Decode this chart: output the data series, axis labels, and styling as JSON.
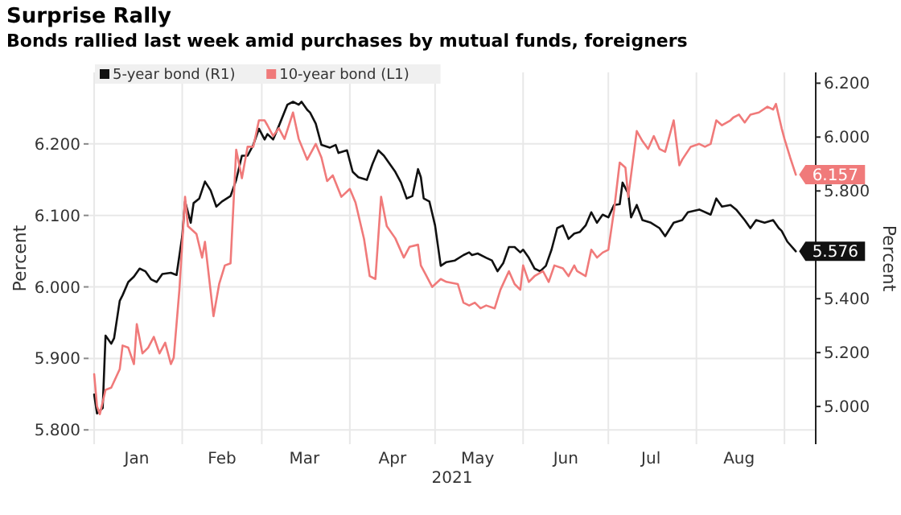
{
  "chart_data": {
    "type": "line",
    "title": "Surprise Rally",
    "subtitle": "Bonds rallied last week amid purchases by mutual funds, foreigners",
    "xlabel": "2021",
    "ylabel": "Percent",
    "y2label": "Percent",
    "xlim": [
      "2020-12-30",
      "2021-09-12"
    ],
    "xticks": [
      {
        "value": "2021-01-01",
        "label": null
      },
      {
        "value": "2021-01-16",
        "label": "Jan"
      },
      {
        "value": "2021-02-01",
        "label": null
      },
      {
        "value": "2021-02-15",
        "label": "Feb"
      },
      {
        "value": "2021-03-01",
        "label": null
      },
      {
        "value": "2021-03-16",
        "label": "Mar"
      },
      {
        "value": "2021-04-01",
        "label": null
      },
      {
        "value": "2021-04-16",
        "label": "Apr"
      },
      {
        "value": "2021-05-01",
        "label": null
      },
      {
        "value": "2021-05-16",
        "label": "May"
      },
      {
        "value": "2021-06-01",
        "label": null
      },
      {
        "value": "2021-06-16",
        "label": "Jun"
      },
      {
        "value": "2021-07-01",
        "label": null
      },
      {
        "value": "2021-07-16",
        "label": "Jul"
      },
      {
        "value": "2021-08-01",
        "label": null
      },
      {
        "value": "2021-08-16",
        "label": "Aug"
      },
      {
        "value": "2021-09-01",
        "label": null
      }
    ],
    "ylim": [
      5.78,
      6.3
    ],
    "yticks": [
      {
        "value": 5.8,
        "label": "5.800"
      },
      {
        "value": 5.9,
        "label": "5.900"
      },
      {
        "value": 6.0,
        "label": "6.000"
      },
      {
        "value": 6.1,
        "label": "6.100"
      },
      {
        "value": 6.2,
        "label": "6.200"
      }
    ],
    "y2lim": [
      4.86,
      6.24
    ],
    "y2ticks": [
      {
        "value": 5.0,
        "label": "5.000"
      },
      {
        "value": 5.2,
        "label": "5.200"
      },
      {
        "value": 5.4,
        "label": "5.400"
      },
      {
        "value": 5.6,
        "label": null
      },
      {
        "value": 5.8,
        "label": "5.800"
      },
      {
        "value": 6.0,
        "label": "6.000"
      },
      {
        "value": 6.2,
        "label": "6.200"
      }
    ],
    "grid": true,
    "legend": "top left",
    "marker": "none",
    "line_style": "solid",
    "series": [
      {
        "name": "5-year bond (R1)",
        "color": "#111111",
        "axis": "y2",
        "x": [
          "2021-01-01",
          "2021-01-02",
          "2021-01-04",
          "2021-01-05",
          "2021-01-07",
          "2021-01-08",
          "2021-01-10",
          "2021-01-11",
          "2021-01-13",
          "2021-01-15",
          "2021-01-17",
          "2021-01-19",
          "2021-01-21",
          "2021-01-23",
          "2021-01-25",
          "2021-01-28",
          "2021-01-30",
          "2021-02-01",
          "2021-02-02",
          "2021-02-04",
          "2021-02-05",
          "2021-02-07",
          "2021-02-09",
          "2021-02-11",
          "2021-02-13",
          "2021-02-15",
          "2021-02-18",
          "2021-02-20",
          "2021-02-22",
          "2021-02-24",
          "2021-02-26",
          "2021-02-28",
          "2021-03-02",
          "2021-03-03",
          "2021-03-05",
          "2021-03-07",
          "2021-03-10",
          "2021-03-12",
          "2021-03-14",
          "2021-03-15",
          "2021-03-17",
          "2021-03-18",
          "2021-03-20",
          "2021-03-22",
          "2021-03-25",
          "2021-03-27",
          "2021-03-28",
          "2021-03-31",
          "2021-04-02",
          "2021-04-04",
          "2021-04-07",
          "2021-04-09",
          "2021-04-11",
          "2021-04-13",
          "2021-04-15",
          "2021-04-17",
          "2021-04-19",
          "2021-04-21",
          "2021-04-23",
          "2021-04-25",
          "2021-04-26",
          "2021-04-27",
          "2021-04-29",
          "2021-05-01",
          "2021-05-03",
          "2021-05-05",
          "2021-05-08",
          "2021-05-11",
          "2021-05-13",
          "2021-05-14",
          "2021-05-16",
          "2021-05-19",
          "2021-05-21",
          "2021-05-23",
          "2021-05-25",
          "2021-05-27",
          "2021-05-29",
          "2021-05-31",
          "2021-06-01",
          "2021-06-03",
          "2021-06-05",
          "2021-06-07",
          "2021-06-09",
          "2021-06-11",
          "2021-06-13",
          "2021-06-15",
          "2021-06-17",
          "2021-06-19",
          "2021-06-21",
          "2021-06-23",
          "2021-06-25",
          "2021-06-27",
          "2021-06-29",
          "2021-07-01",
          "2021-07-03",
          "2021-07-05",
          "2021-07-06",
          "2021-07-08",
          "2021-07-09",
          "2021-07-11",
          "2021-07-13",
          "2021-07-16",
          "2021-07-19",
          "2021-07-21",
          "2021-07-24",
          "2021-07-27",
          "2021-07-29",
          "2021-08-02",
          "2021-08-06",
          "2021-08-08",
          "2021-08-10",
          "2021-08-13",
          "2021-08-15",
          "2021-08-18",
          "2021-08-20",
          "2021-08-22",
          "2021-08-25",
          "2021-08-28",
          "2021-08-30",
          "2021-08-31",
          "2021-09-02",
          "2021-09-05"
        ],
        "values": [
          5.044,
          4.974,
          4.994,
          5.263,
          5.233,
          5.253,
          5.392,
          5.413,
          5.462,
          5.482,
          5.512,
          5.502,
          5.472,
          5.462,
          5.492,
          5.496,
          5.488,
          5.632,
          5.761,
          5.682,
          5.755,
          5.772,
          5.835,
          5.802,
          5.742,
          5.761,
          5.781,
          5.841,
          5.931,
          5.931,
          5.971,
          6.031,
          5.991,
          6.011,
          5.991,
          6.041,
          6.12,
          6.131,
          6.12,
          6.131,
          6.101,
          6.091,
          6.05,
          5.971,
          5.961,
          5.971,
          5.941,
          5.951,
          5.871,
          5.851,
          5.841,
          5.901,
          5.951,
          5.931,
          5.901,
          5.871,
          5.831,
          5.772,
          5.781,
          5.881,
          5.851,
          5.772,
          5.761,
          5.672,
          5.522,
          5.536,
          5.542,
          5.562,
          5.572,
          5.562,
          5.568,
          5.552,
          5.542,
          5.502,
          5.532,
          5.592,
          5.592,
          5.572,
          5.582,
          5.552,
          5.512,
          5.502,
          5.522,
          5.582,
          5.662,
          5.672,
          5.622,
          5.642,
          5.648,
          5.672,
          5.721,
          5.682,
          5.712,
          5.702,
          5.748,
          5.751,
          5.831,
          5.791,
          5.702,
          5.748,
          5.692,
          5.682,
          5.662,
          5.632,
          5.682,
          5.692,
          5.721,
          5.731,
          5.712,
          5.772,
          5.742,
          5.748,
          5.731,
          5.692,
          5.662,
          5.692,
          5.682,
          5.692,
          5.662,
          5.652,
          5.612,
          5.576
        ],
        "value_labels": [
          null,
          null,
          null,
          null,
          null,
          null,
          null,
          null,
          null,
          null,
          null,
          null,
          null,
          null,
          null,
          null,
          null,
          null,
          null,
          null,
          null,
          null,
          null,
          null,
          null,
          null,
          null,
          null,
          null,
          null,
          null,
          null,
          null,
          null,
          null,
          null,
          null,
          null,
          null,
          null,
          null,
          null,
          null,
          null,
          null,
          null,
          null,
          null,
          null,
          null,
          null,
          null,
          null,
          null,
          null,
          null,
          null,
          null,
          null,
          null,
          null,
          null,
          null,
          null,
          null,
          null,
          null,
          null,
          null,
          null,
          null,
          null,
          null,
          null,
          null,
          null,
          null,
          null,
          null,
          null,
          null,
          null,
          null,
          null,
          null,
          null,
          null,
          null,
          null,
          null,
          null,
          null,
          null,
          null,
          null,
          null,
          null,
          null,
          null,
          null,
          null,
          null,
          null,
          null,
          null,
          null,
          null,
          null,
          null,
          null,
          null,
          null,
          null,
          null,
          null,
          null,
          null,
          null,
          null,
          null,
          null,
          "5.576"
        ]
      },
      {
        "name": "10-year bond (L1)",
        "color": "#f07a7a",
        "x": [
          "2021-01-01",
          "2021-01-02",
          "2021-01-03",
          "2021-01-05",
          "2021-01-07",
          "2021-01-10",
          "2021-01-11",
          "2021-01-13",
          "2021-01-15",
          "2021-01-16",
          "2021-01-18",
          "2021-01-20",
          "2021-01-22",
          "2021-01-24",
          "2021-01-26",
          "2021-01-28",
          "2021-01-29",
          "2021-01-31",
          "2021-02-02",
          "2021-02-03",
          "2021-02-06",
          "2021-02-08",
          "2021-02-09",
          "2021-02-12",
          "2021-02-14",
          "2021-02-16",
          "2021-02-18",
          "2021-02-20",
          "2021-02-22",
          "2021-02-24",
          "2021-02-26",
          "2021-02-28",
          "2021-03-02",
          "2021-03-03",
          "2021-03-05",
          "2021-03-07",
          "2021-03-09",
          "2021-03-12",
          "2021-03-14",
          "2021-03-17",
          "2021-03-20",
          "2021-03-22",
          "2021-03-24",
          "2021-03-26",
          "2021-03-29",
          "2021-04-01",
          "2021-04-03",
          "2021-04-06",
          "2021-04-08",
          "2021-04-10",
          "2021-04-12",
          "2021-04-14",
          "2021-04-17",
          "2021-04-20",
          "2021-04-22",
          "2021-04-25",
          "2021-04-26",
          "2021-04-28",
          "2021-04-30",
          "2021-05-03",
          "2021-05-05",
          "2021-05-09",
          "2021-05-11",
          "2021-05-13",
          "2021-05-15",
          "2021-05-17",
          "2021-05-19",
          "2021-05-22",
          "2021-05-24",
          "2021-05-27",
          "2021-05-29",
          "2021-05-31",
          "2021-06-01",
          "2021-06-03",
          "2021-06-05",
          "2021-06-08",
          "2021-06-10",
          "2021-06-12",
          "2021-06-15",
          "2021-06-17",
          "2021-06-19",
          "2021-06-20",
          "2021-06-23",
          "2021-06-25",
          "2021-06-27",
          "2021-06-29",
          "2021-07-01",
          "2021-07-03",
          "2021-07-05",
          "2021-07-07",
          "2021-07-08",
          "2021-07-11",
          "2021-07-13",
          "2021-07-15",
          "2021-07-17",
          "2021-07-19",
          "2021-07-21",
          "2021-07-24",
          "2021-07-26",
          "2021-07-27",
          "2021-07-30",
          "2021-08-02",
          "2021-08-04",
          "2021-08-06",
          "2021-08-08",
          "2021-08-10",
          "2021-08-13",
          "2021-08-14",
          "2021-08-16",
          "2021-08-18",
          "2021-08-20",
          "2021-08-23",
          "2021-08-26",
          "2021-08-28",
          "2021-08-29",
          "2021-08-31",
          "2021-09-01",
          "2021-09-03",
          "2021-09-05"
        ],
        "values": [
          5.878,
          5.833,
          5.822,
          5.856,
          5.859,
          5.885,
          5.918,
          5.915,
          5.892,
          5.948,
          5.907,
          5.915,
          5.93,
          5.907,
          5.922,
          5.892,
          5.901,
          5.996,
          6.126,
          6.085,
          6.074,
          6.041,
          6.063,
          5.959,
          6.004,
          6.03,
          6.033,
          6.192,
          6.152,
          6.196,
          6.196,
          6.233,
          6.233,
          6.226,
          6.211,
          6.222,
          6.207,
          6.244,
          6.207,
          6.178,
          6.2,
          6.181,
          6.148,
          6.156,
          6.126,
          6.137,
          6.118,
          6.067,
          6.015,
          6.011,
          6.126,
          6.085,
          6.068,
          6.041,
          6.056,
          6.059,
          6.03,
          6.015,
          6.0,
          6.011,
          6.007,
          6.004,
          5.978,
          5.974,
          5.978,
          5.97,
          5.974,
          5.97,
          5.996,
          6.022,
          6.004,
          5.996,
          6.03,
          6.007,
          6.015,
          6.022,
          6.007,
          6.03,
          6.026,
          6.015,
          6.03,
          6.022,
          6.015,
          6.052,
          6.041,
          6.048,
          6.052,
          6.107,
          6.174,
          6.167,
          6.126,
          6.218,
          6.204,
          6.193,
          6.211,
          6.193,
          6.189,
          6.233,
          6.17,
          6.178,
          6.196,
          6.2,
          6.196,
          6.2,
          6.233,
          6.226,
          6.233,
          6.237,
          6.241,
          6.23,
          6.241,
          6.244,
          6.252,
          6.248,
          6.256,
          6.222,
          6.207,
          6.181,
          6.157
        ],
        "value_labels": [
          null,
          null,
          null,
          null,
          null,
          null,
          null,
          null,
          null,
          null,
          null,
          null,
          null,
          null,
          null,
          null,
          null,
          null,
          null,
          null,
          null,
          null,
          null,
          null,
          null,
          null,
          null,
          null,
          null,
          null,
          null,
          null,
          null,
          null,
          null,
          null,
          null,
          null,
          null,
          null,
          null,
          null,
          null,
          null,
          null,
          null,
          null,
          null,
          null,
          null,
          null,
          null,
          null,
          null,
          null,
          null,
          null,
          null,
          null,
          null,
          null,
          null,
          null,
          null,
          null,
          null,
          null,
          null,
          null,
          null,
          null,
          null,
          null,
          null,
          null,
          null,
          null,
          null,
          null,
          null,
          null,
          null,
          null,
          null,
          null,
          null,
          null,
          null,
          null,
          null,
          null,
          null,
          null,
          null,
          null,
          null,
          null,
          null,
          null,
          null,
          null,
          null,
          null,
          null,
          null,
          null,
          null,
          null,
          null,
          null,
          null,
          null,
          null,
          null,
          null,
          null,
          null,
          null,
          "6.157"
        ]
      }
    ]
  }
}
